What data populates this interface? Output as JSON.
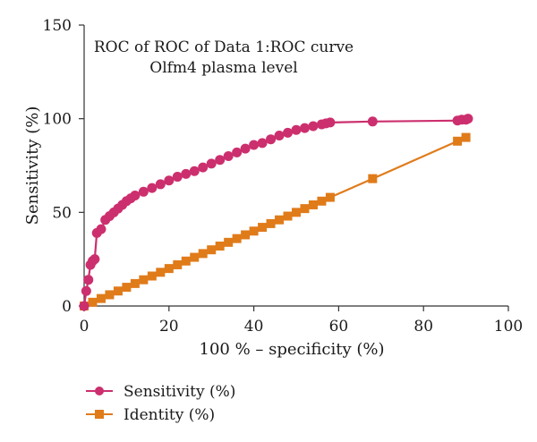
{
  "chart_data": {
    "type": "line",
    "title": "ROC of ROC of Data 1:ROC curve",
    "subtitle": "Olfm4 plasma level",
    "xlabel": "100 % – specificity (%)",
    "ylabel": "Sensitivity (%)",
    "xlim": [
      0,
      100
    ],
    "ylim": [
      0,
      150
    ],
    "xticks": [
      "0",
      "20",
      "40",
      "60",
      "80",
      "100"
    ],
    "yticks": [
      "0",
      "50",
      "100",
      "150"
    ],
    "grid": false,
    "legend_position": "bottom-left",
    "series": [
      {
        "name": "Sensitivity (%)",
        "color": "#cc2f6e",
        "marker": "circle",
        "x": [
          0,
          0.5,
          1,
          1.5,
          2,
          2.5,
          3,
          4,
          5,
          6,
          7,
          8,
          9,
          10,
          11,
          12,
          14,
          16,
          18,
          20,
          22,
          24,
          26,
          28,
          30,
          32,
          34,
          36,
          38,
          40,
          42,
          44,
          46,
          48,
          50,
          52,
          54,
          56,
          57,
          58,
          68,
          88,
          89,
          90,
          90.5
        ],
        "y": [
          0,
          8,
          14,
          22,
          24,
          25,
          39,
          41,
          46,
          48,
          50,
          52,
          54,
          56,
          57.5,
          59,
          61,
          63,
          65,
          67,
          69,
          70.5,
          72,
          74,
          76,
          78,
          80,
          82,
          84,
          86,
          87,
          89,
          91,
          92.5,
          94,
          95,
          96,
          97,
          97.5,
          98,
          98.5,
          99,
          99.5,
          99.5,
          100
        ]
      },
      {
        "name": "Identity (%)",
        "color": "#e07b1a",
        "marker": "square",
        "x": [
          0,
          2,
          4,
          6,
          8,
          10,
          12,
          14,
          16,
          18,
          20,
          22,
          24,
          26,
          28,
          30,
          32,
          34,
          36,
          38,
          40,
          42,
          44,
          46,
          48,
          50,
          52,
          54,
          56,
          58,
          68,
          88,
          90
        ],
        "y": [
          0,
          2,
          4,
          6,
          8,
          10,
          12,
          14,
          16,
          18,
          20,
          22,
          24,
          26,
          28,
          30,
          32,
          34,
          36,
          38,
          40,
          42,
          44,
          46,
          48,
          50,
          52,
          54,
          56,
          58,
          68,
          88,
          90
        ]
      }
    ]
  }
}
